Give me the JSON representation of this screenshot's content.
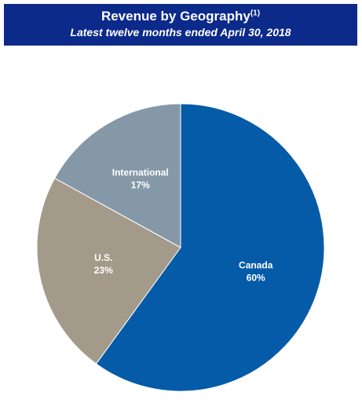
{
  "chart_data": {
    "type": "pie",
    "title": "Revenue by Geography",
    "title_note": "(1)",
    "subtitle": "Latest twelve months ended April 30, 2018",
    "categories": [
      "Canada",
      "U.S.",
      "International"
    ],
    "values": [
      60,
      23,
      17
    ],
    "value_labels": [
      "60%",
      "23%",
      "17%"
    ],
    "colors": [
      "#065ba8",
      "#a39a8a",
      "#8598a8"
    ]
  }
}
